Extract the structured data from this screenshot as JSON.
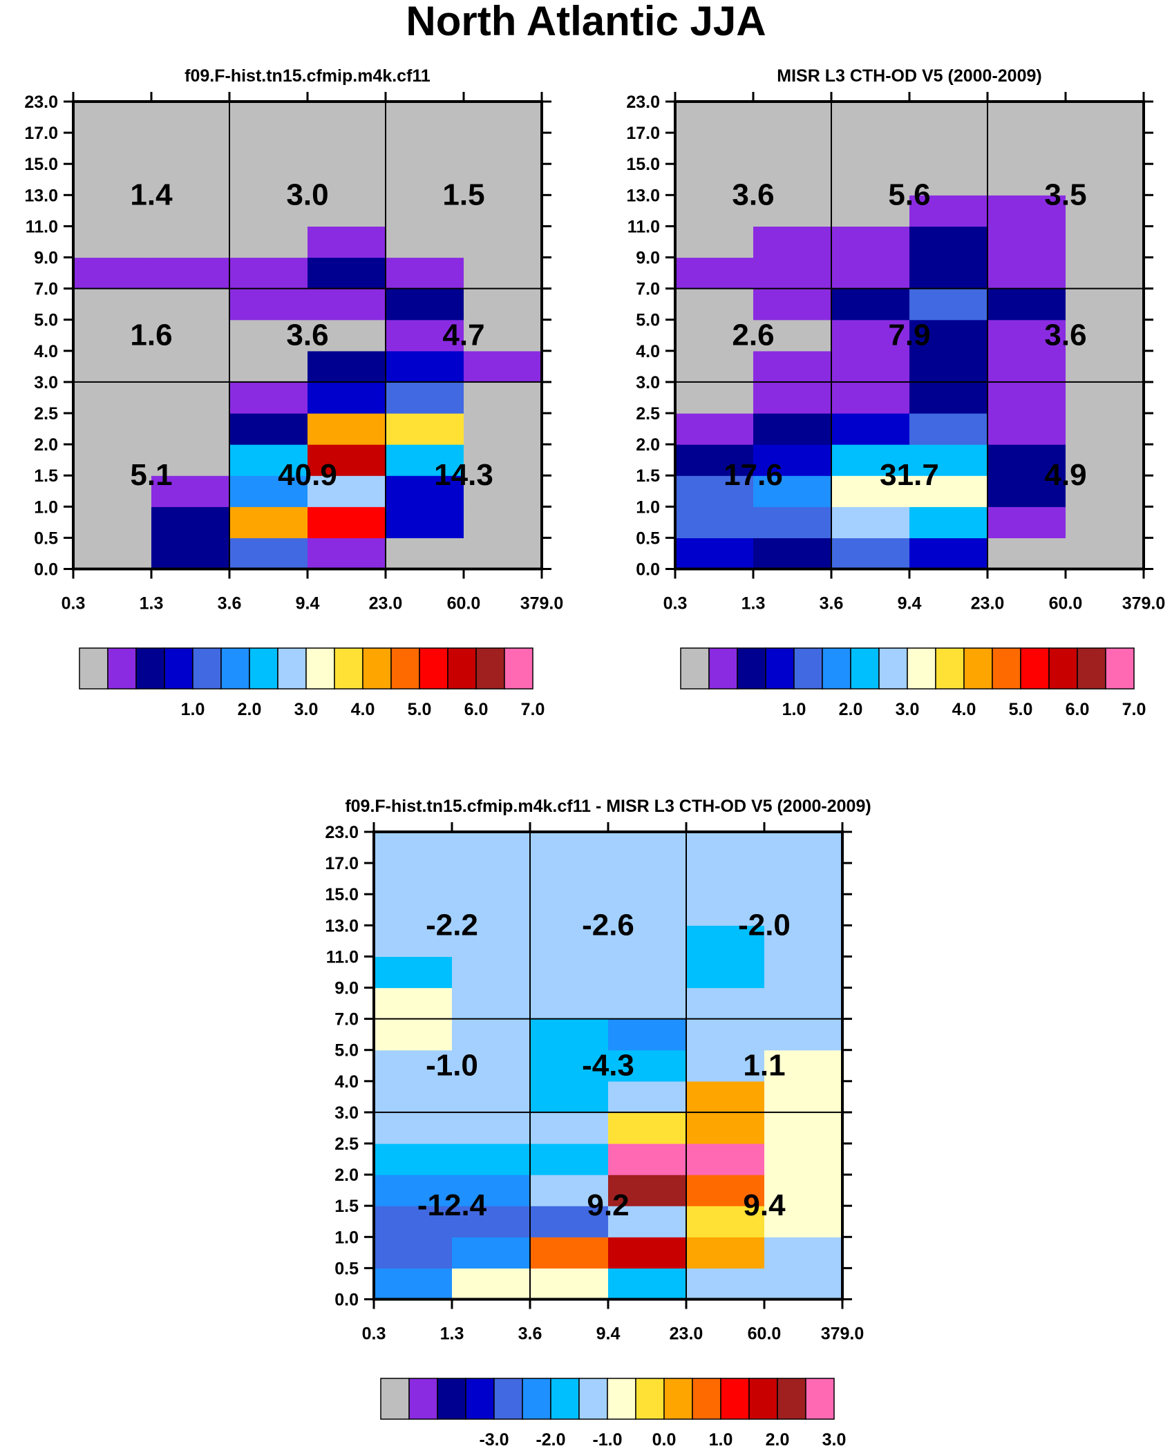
{
  "figure_title": "North Atlantic JJA",
  "chart_data": [
    {
      "type": "heatmap",
      "id": "model",
      "title": "f09.F-hist.tn15.cfmip.m4k.cf11",
      "x_tick_labels": [
        "0.3",
        "1.3",
        "3.6",
        "9.4",
        "23.0",
        "60.0",
        "379.0"
      ],
      "y_tick_labels": [
        "0.0",
        "0.5",
        "1.0",
        "1.5",
        "2.0",
        "2.5",
        "3.0",
        "4.0",
        "5.0",
        "7.0",
        "9.0",
        "11.0",
        "13.0",
        "15.0",
        "17.0",
        "23.0"
      ],
      "colorbar_labels": [
        "1.0",
        "2.0",
        "3.0",
        "4.0",
        "5.0",
        "6.0",
        "7.0"
      ],
      "colorbar_colors": [
        "#bebebe",
        "#8a2be2",
        "#000090",
        "#0000cd",
        "#4169e1",
        "#1e90ff",
        "#00bfff",
        "#a3d0ff",
        "#ffffd0",
        "#ffe135",
        "#ffa500",
        "#ff6a00",
        "#ff0000",
        "#c80000",
        "#a02020",
        "#ff69b4"
      ],
      "cell_color_index": [
        [
          0,
          2,
          4,
          1,
          0,
          0
        ],
        [
          0,
          2,
          10,
          12,
          3,
          0
        ],
        [
          0,
          1,
          5,
          7,
          3,
          0
        ],
        [
          0,
          0,
          6,
          13,
          6,
          0
        ],
        [
          0,
          0,
          2,
          10,
          9,
          0
        ],
        [
          0,
          0,
          1,
          3,
          4,
          0
        ],
        [
          0,
          0,
          0,
          2,
          3,
          1
        ],
        [
          0,
          0,
          0,
          0,
          1,
          0
        ],
        [
          0,
          0,
          1,
          1,
          2,
          0
        ],
        [
          1,
          1,
          1,
          2,
          1,
          0
        ],
        [
          0,
          0,
          0,
          1,
          0,
          0
        ],
        [
          0,
          0,
          0,
          0,
          0,
          0
        ],
        [
          0,
          0,
          0,
          0,
          0,
          0
        ],
        [
          0,
          0,
          0,
          0,
          0,
          0
        ],
        [
          0,
          0,
          0,
          0,
          0,
          0
        ]
      ],
      "group_totals": [
        [
          "5.1",
          "40.9",
          "14.3"
        ],
        [
          "1.6",
          "3.6",
          "4.7"
        ],
        [
          "1.4",
          "3.0",
          "1.5"
        ]
      ]
    },
    {
      "type": "heatmap",
      "id": "obs",
      "title": "MISR L3 CTH-OD V5 (2000-2009)",
      "x_tick_labels": [
        "0.3",
        "1.3",
        "3.6",
        "9.4",
        "23.0",
        "60.0",
        "379.0"
      ],
      "y_tick_labels": [
        "0.0",
        "0.5",
        "1.0",
        "1.5",
        "2.0",
        "2.5",
        "3.0",
        "4.0",
        "5.0",
        "7.0",
        "9.0",
        "11.0",
        "13.0",
        "15.0",
        "17.0",
        "23.0"
      ],
      "colorbar_labels": [
        "1.0",
        "2.0",
        "3.0",
        "4.0",
        "5.0",
        "6.0",
        "7.0"
      ],
      "colorbar_colors": [
        "#bebebe",
        "#8a2be2",
        "#000090",
        "#0000cd",
        "#4169e1",
        "#1e90ff",
        "#00bfff",
        "#a3d0ff",
        "#ffffd0",
        "#ffe135",
        "#ffa500",
        "#ff6a00",
        "#ff0000",
        "#c80000",
        "#a02020",
        "#ff69b4"
      ],
      "cell_color_index": [
        [
          3,
          2,
          4,
          3,
          0,
          0
        ],
        [
          4,
          4,
          7,
          6,
          1,
          0
        ],
        [
          4,
          5,
          8,
          8,
          2,
          0
        ],
        [
          2,
          3,
          6,
          6,
          2,
          0
        ],
        [
          1,
          2,
          3,
          4,
          1,
          0
        ],
        [
          0,
          1,
          1,
          2,
          1,
          0
        ],
        [
          0,
          1,
          1,
          2,
          1,
          0
        ],
        [
          0,
          0,
          1,
          2,
          1,
          0
        ],
        [
          0,
          1,
          2,
          4,
          2,
          0
        ],
        [
          1,
          1,
          1,
          2,
          1,
          0
        ],
        [
          0,
          1,
          1,
          2,
          1,
          0
        ],
        [
          0,
          0,
          0,
          1,
          1,
          0
        ],
        [
          0,
          0,
          0,
          0,
          0,
          0
        ],
        [
          0,
          0,
          0,
          0,
          0,
          0
        ],
        [
          0,
          0,
          0,
          0,
          0,
          0
        ]
      ],
      "group_totals": [
        [
          "17.6",
          "31.7",
          "4.9"
        ],
        [
          "2.6",
          "7.9",
          "3.6"
        ],
        [
          "3.6",
          "5.6",
          "3.5"
        ]
      ]
    },
    {
      "type": "heatmap",
      "id": "diff",
      "title": "f09.F-hist.tn15.cfmip.m4k.cf11 - MISR L3 CTH-OD V5 (2000-2009)",
      "x_tick_labels": [
        "0.3",
        "1.3",
        "3.6",
        "9.4",
        "23.0",
        "60.0",
        "379.0"
      ],
      "y_tick_labels": [
        "0.0",
        "0.5",
        "1.0",
        "1.5",
        "2.0",
        "2.5",
        "3.0",
        "4.0",
        "5.0",
        "7.0",
        "9.0",
        "11.0",
        "13.0",
        "15.0",
        "17.0",
        "23.0"
      ],
      "colorbar_labels": [
        "-3.0",
        "-2.0",
        "-1.0",
        "0.0",
        "1.0",
        "2.0",
        "3.0"
      ],
      "colorbar_colors": [
        "#bebebe",
        "#8a2be2",
        "#000090",
        "#0000cd",
        "#4169e1",
        "#1e90ff",
        "#00bfff",
        "#a3d0ff",
        "#ffffd0",
        "#ffe135",
        "#ffa500",
        "#ff6a00",
        "#ff0000",
        "#c80000",
        "#a02020",
        "#ff69b4"
      ],
      "cell_color_index": [
        [
          5,
          8,
          8,
          6,
          7,
          7
        ],
        [
          4,
          5,
          11,
          13,
          10,
          7
        ],
        [
          4,
          4,
          4,
          7,
          9,
          8
        ],
        [
          5,
          5,
          7,
          14,
          11,
          8
        ],
        [
          6,
          6,
          6,
          15,
          15,
          8
        ],
        [
          7,
          7,
          7,
          9,
          10,
          8
        ],
        [
          7,
          7,
          6,
          7,
          10,
          8
        ],
        [
          7,
          7,
          6,
          6,
          7,
          8
        ],
        [
          8,
          7,
          6,
          5,
          7,
          7
        ],
        [
          8,
          7,
          7,
          7,
          7,
          7
        ],
        [
          6,
          7,
          7,
          7,
          6,
          7
        ],
        [
          7,
          7,
          7,
          7,
          6,
          7
        ],
        [
          7,
          7,
          7,
          7,
          7,
          7
        ],
        [
          7,
          7,
          7,
          7,
          7,
          7
        ],
        [
          7,
          7,
          7,
          7,
          7,
          7
        ]
      ],
      "group_totals": [
        [
          "-12.4",
          "9.2",
          "9.4"
        ],
        [
          "-1.0",
          "-4.3",
          "1.1"
        ],
        [
          "-2.2",
          "-2.6",
          "-2.0"
        ]
      ]
    }
  ]
}
